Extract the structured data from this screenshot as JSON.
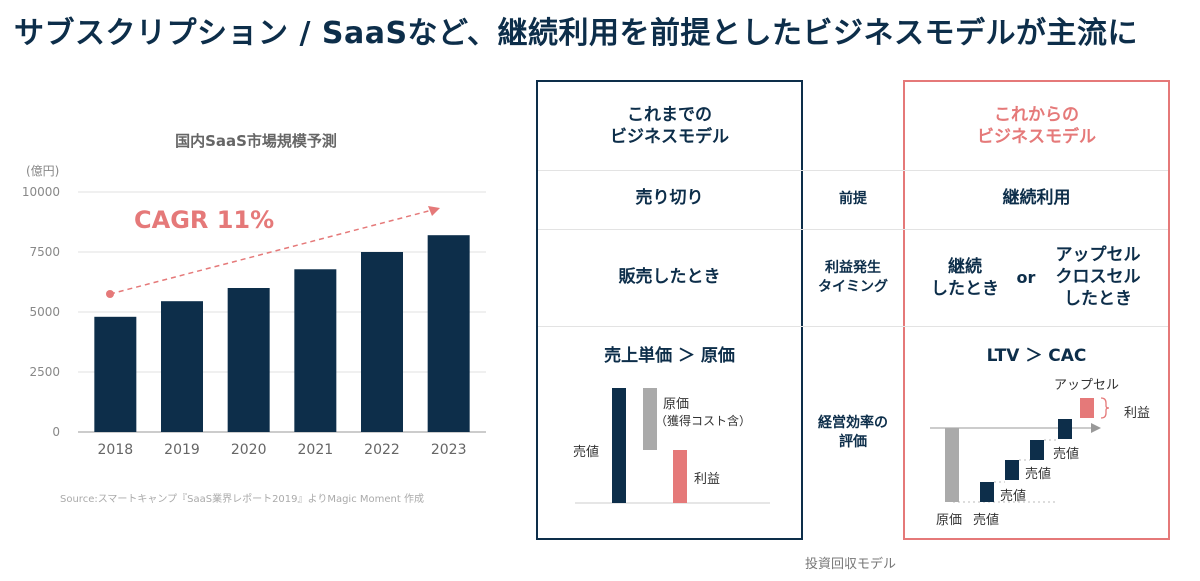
{
  "title": "サブスクリプション / SaaSなど、継続利用を前提としたビジネスモデルが主流に",
  "chart_data": {
    "type": "bar",
    "title": "国内SaaS市場規模予測",
    "unit_label": "(億円)",
    "categories": [
      "2018",
      "2019",
      "2020",
      "2021",
      "2022",
      "2023"
    ],
    "values": [
      4800,
      5450,
      6000,
      6780,
      7500,
      8200
    ],
    "ylim": [
      0,
      10000
    ],
    "yticks": [
      0,
      2500,
      5000,
      7500,
      10000
    ],
    "grid": true,
    "bar_color": "#0d2e4a",
    "annotation": "CAGR 11%",
    "annotation_color": "#e57979"
  },
  "source": "Source:スマートキャンプ『SaaS業界レポート2019』よりMagic Moment 作成",
  "comparison": {
    "old_header": [
      "これまでの",
      "ビジネスモデル"
    ],
    "new_header": [
      "これからの",
      "ビジネスモデル"
    ],
    "rows": [
      {
        "label": "前提",
        "old": "売り切り",
        "new": "継続利用"
      },
      {
        "label": [
          "利益発生",
          "タイミング"
        ],
        "old": "販売したとき",
        "new_left": [
          "継続",
          "したとき"
        ],
        "new_or": "or",
        "new_right": [
          "アップセル",
          "クロスセル",
          "したとき"
        ]
      },
      {
        "label": [
          "経営効率の",
          "評価"
        ],
        "old": "売上単価 ＞ 原価",
        "new": "LTV ＞ CAC"
      }
    ],
    "old_diagram": {
      "sell": "売値",
      "cost": "原価",
      "cost_note": "（獲得コスト含）",
      "profit": "利益"
    },
    "new_diagram": {
      "cost": "原価",
      "sell1": "売値",
      "sell2": "売値",
      "sell3": "売値",
      "sell4": "売値",
      "upsell": "アップセル",
      "profit": "利益"
    },
    "caption": "投資回収モデル"
  },
  "colors": {
    "navy": "#0d2e4a",
    "pink": "#e57979",
    "gray": "#aaaaaa"
  }
}
